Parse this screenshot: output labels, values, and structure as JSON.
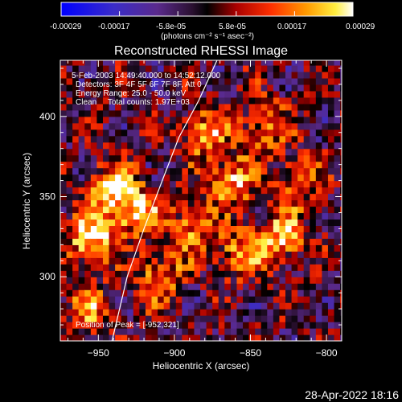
{
  "colorbar": {
    "tick_labels": [
      "-0.00029",
      "-0.00017",
      "-5.8e-05",
      "5.8e-05",
      "0.00017",
      "0.00029"
    ],
    "unit_label": "(photons cm⁻² s⁻¹ asec⁻²)",
    "range": [
      -0.00029,
      0.00029
    ]
  },
  "info_text": {
    "line1": "5-Feb-2003 14:49:40.000 to 14:52:12.000",
    "line2": "Detectors: 3F 4F 5F 6F 7F 8F, Att 0",
    "line3": "Energy Range: 25.0 - 50.0 keV",
    "line4": "Clean     Total counts: 1.97E+03",
    "peak": "Position of Peak = [-952,321]"
  },
  "timestamp": "28-Apr-2022 18:16",
  "chart_data": {
    "type": "heatmap",
    "title": "Reconstructed RHESSI Image",
    "xlabel": "Heliocentric X (arcsec)",
    "ylabel": "Heliocentric Y (arcsec)",
    "xlim": [
      -975,
      -790
    ],
    "ylim": [
      260,
      435
    ],
    "x_ticks": [
      -950,
      -900,
      -850,
      -800
    ],
    "y_ticks": [
      300,
      350,
      400
    ],
    "x_tick_labels": [
      "−950",
      "−900",
      "−850",
      "−800"
    ],
    "y_tick_labels": [
      "300",
      "350",
      "400"
    ],
    "colormap": "rainbow-hot",
    "limb_line": [
      [
        -942,
        256
      ],
      [
        -931,
        300
      ],
      [
        -920,
        330
      ],
      [
        -908,
        360
      ],
      [
        -897,
        387
      ],
      [
        -884,
        410
      ],
      [
        -872,
        435
      ]
    ],
    "peak_position": [
      -952,
      321
    ],
    "bright_sources": [
      {
        "x": -955,
        "y": 325,
        "value": 0.00029
      },
      {
        "x": -940,
        "y": 355,
        "value": 0.00026
      },
      {
        "x": -925,
        "y": 340,
        "value": 0.00022
      },
      {
        "x": -910,
        "y": 300,
        "value": 0.0002
      },
      {
        "x": -890,
        "y": 330,
        "value": 0.00018
      },
      {
        "x": -880,
        "y": 390,
        "value": 0.00021
      },
      {
        "x": -862,
        "y": 360,
        "value": 0.00023
      },
      {
        "x": -858,
        "y": 315,
        "value": 0.00019
      },
      {
        "x": -840,
        "y": 395,
        "value": 0.00018
      },
      {
        "x": -830,
        "y": 325,
        "value": 0.00024
      },
      {
        "x": -818,
        "y": 360,
        "value": 0.00017
      },
      {
        "x": -955,
        "y": 280,
        "value": 0.00016
      }
    ],
    "colors": {
      "low": "#0000ff",
      "mid": "#000000",
      "high": "#ffffff"
    }
  }
}
